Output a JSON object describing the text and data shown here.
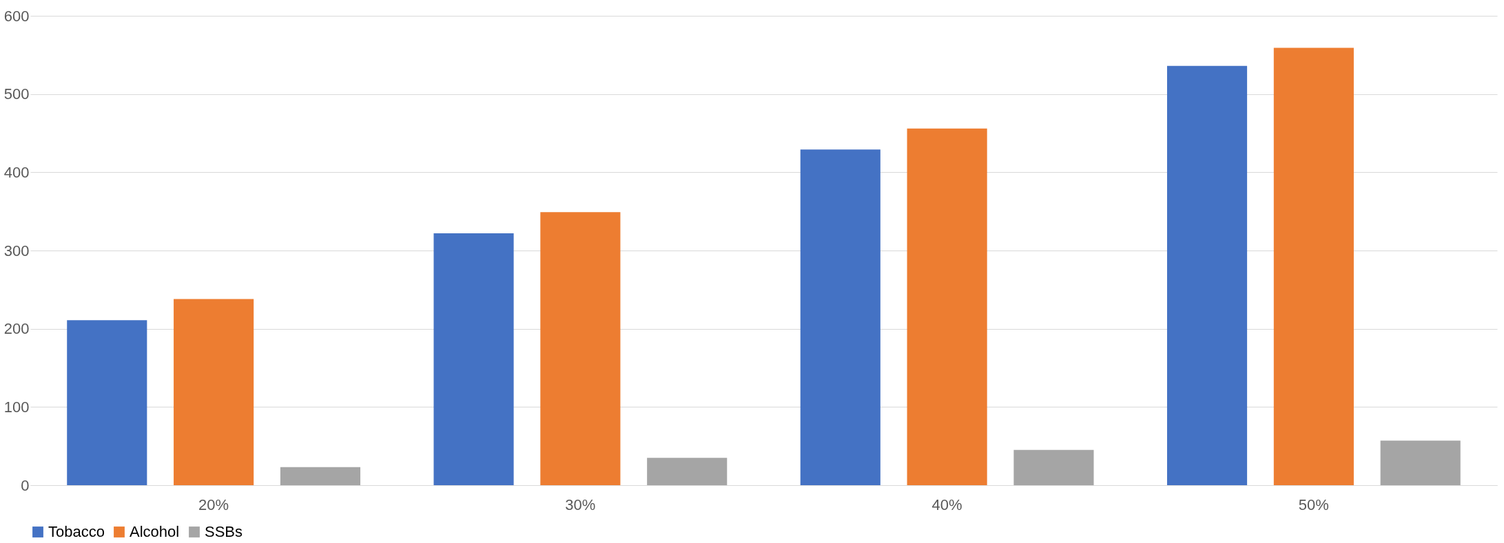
{
  "chart_data": {
    "type": "bar",
    "categories": [
      "20%",
      "30%",
      "40%",
      "50%"
    ],
    "series": [
      {
        "name": "Tobacco",
        "color": "#4472c4",
        "values": [
          211,
          322,
          429,
          536
        ]
      },
      {
        "name": "Alcohol",
        "color": "#ed7d31",
        "values": [
          238,
          349,
          456,
          559
        ]
      },
      {
        "name": "SSBs",
        "color": "#a5a5a5",
        "values": [
          23,
          35,
          45,
          57
        ]
      }
    ],
    "ylim": [
      0,
      600
    ],
    "yticks": [
      0,
      100,
      200,
      300,
      400,
      500,
      600
    ],
    "grid": "y",
    "legend": "bottom"
  }
}
